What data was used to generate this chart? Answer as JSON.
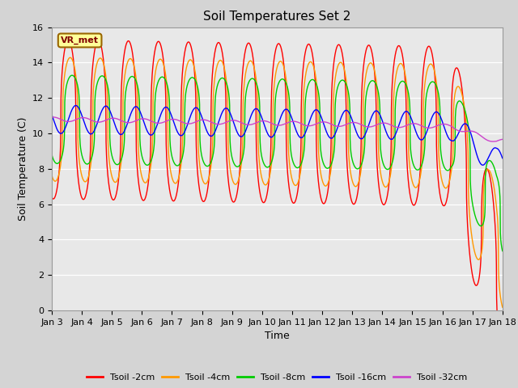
{
  "title": "Soil Temperatures Set 2",
  "xlabel": "Time",
  "ylabel": "Soil Temperature (C)",
  "ylim": [
    0,
    16
  ],
  "yticks": [
    0,
    2,
    4,
    6,
    8,
    10,
    12,
    14,
    16
  ],
  "n_days": 15,
  "series_colors": [
    "#ff0000",
    "#ff9900",
    "#00cc00",
    "#0000ff",
    "#cc44cc"
  ],
  "series_labels": [
    "Tsoil -2cm",
    "Tsoil -4cm",
    "Tsoil -8cm",
    "Tsoil -16cm",
    "Tsoil -32cm"
  ],
  "annotation_text": "VR_met",
  "plot_bg_color": "#e8e8e8",
  "title_fontsize": 11,
  "axis_label_fontsize": 9,
  "tick_fontsize": 8
}
